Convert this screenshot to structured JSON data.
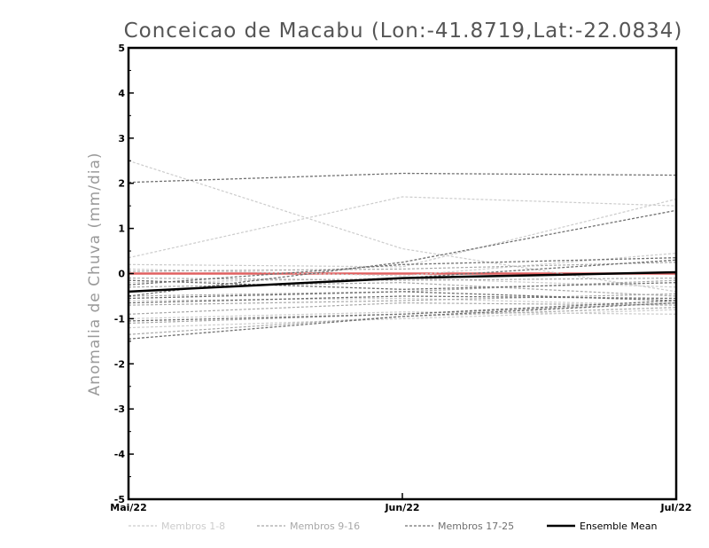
{
  "chart_data": {
    "type": "line",
    "title": "Conceicao de Macabu (Lon:-41.8719,Lat:-22.0834)",
    "ylabel": "Anomalia de Chuva (mm/dia)",
    "xlabel": "",
    "categories": [
      "Mai/22",
      "Jun/22",
      "Jul/22"
    ],
    "ylim": [
      -5,
      5
    ],
    "yticks": [
      "5",
      "4",
      "3",
      "2",
      "1",
      "0",
      "-1",
      "-2",
      "-3",
      "-4",
      "-5"
    ],
    "zero_line_color": "#e06060",
    "legend": [
      {
        "label": "Membros 1-8",
        "color": "#cccccc",
        "dashed": true
      },
      {
        "label": "Membros 9-16",
        "color": "#a8a8a8",
        "dashed": true
      },
      {
        "label": "Membros 17-25",
        "color": "#707070",
        "dashed": true
      },
      {
        "label": "Ensemble Mean",
        "color": "#000000",
        "dashed": false
      }
    ],
    "series": [
      {
        "group": "1-8",
        "values": [
          2.5,
          0.55,
          -0.4
        ]
      },
      {
        "group": "1-8",
        "values": [
          0.35,
          1.7,
          1.5
        ]
      },
      {
        "group": "1-8",
        "values": [
          0.2,
          0.15,
          1.65
        ]
      },
      {
        "group": "1-8",
        "values": [
          0.1,
          -0.05,
          0.45
        ]
      },
      {
        "group": "1-8",
        "values": [
          -0.2,
          -0.1,
          -0.3
        ]
      },
      {
        "group": "1-8",
        "values": [
          -0.6,
          -0.55,
          -0.7
        ]
      },
      {
        "group": "1-8",
        "values": [
          -1.0,
          -0.85,
          -0.9
        ]
      },
      {
        "group": "1-8",
        "values": [
          -1.2,
          -1.0,
          -0.8
        ]
      },
      {
        "group": "9-16",
        "values": [
          0.05,
          0.1,
          0.25
        ]
      },
      {
        "group": "9-16",
        "values": [
          -0.1,
          -0.15,
          -0.1
        ]
      },
      {
        "group": "9-16",
        "values": [
          -0.3,
          -0.2,
          -0.5
        ]
      },
      {
        "group": "9-16",
        "values": [
          -0.5,
          -0.4,
          -0.15
        ]
      },
      {
        "group": "9-16",
        "values": [
          -0.7,
          -0.6,
          -0.45
        ]
      },
      {
        "group": "9-16",
        "values": [
          -0.9,
          -0.65,
          -0.7
        ]
      },
      {
        "group": "9-16",
        "values": [
          -1.1,
          -0.9,
          -0.65
        ]
      },
      {
        "group": "9-16",
        "values": [
          -1.35,
          -0.95,
          -0.75
        ]
      },
      {
        "group": "17-25",
        "values": [
          2.02,
          2.22,
          2.18
        ]
      },
      {
        "group": "17-25",
        "values": [
          -0.5,
          0.25,
          1.4
        ]
      },
      {
        "group": "17-25",
        "values": [
          -0.25,
          0.2,
          0.35
        ]
      },
      {
        "group": "17-25",
        "values": [
          -0.4,
          -0.1,
          0.3
        ]
      },
      {
        "group": "17-25",
        "values": [
          -0.15,
          -0.35,
          -0.2
        ]
      },
      {
        "group": "17-25",
        "values": [
          -0.55,
          -0.4,
          -0.6
        ]
      },
      {
        "group": "17-25",
        "values": [
          -0.65,
          -0.5,
          -0.55
        ]
      },
      {
        "group": "17-25",
        "values": [
          -1.05,
          -0.9,
          -0.6
        ]
      },
      {
        "group": "17-25",
        "values": [
          -1.45,
          -0.95,
          -0.65
        ]
      },
      {
        "group": "mean",
        "values": [
          -0.4,
          -0.1,
          0.03
        ]
      }
    ]
  }
}
